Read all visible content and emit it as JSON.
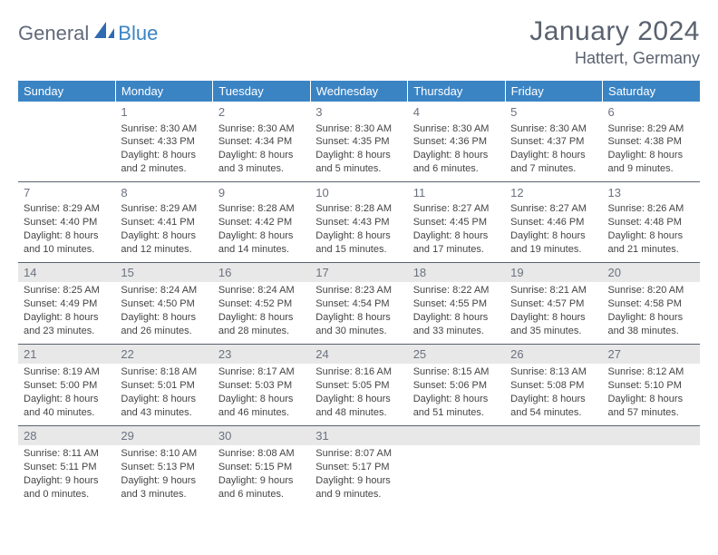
{
  "logo": {
    "general": "General",
    "blue": "Blue"
  },
  "title": "January 2024",
  "location": "Hattert, Germany",
  "header_bg": "#3b84c4",
  "day_headers": [
    "Sunday",
    "Monday",
    "Tuesday",
    "Wednesday",
    "Thursday",
    "Friday",
    "Saturday"
  ],
  "weeks": [
    [
      {
        "num": "",
        "sunrise": "",
        "sunset": "",
        "daylight": ""
      },
      {
        "num": "1",
        "sunrise": "Sunrise: 8:30 AM",
        "sunset": "Sunset: 4:33 PM",
        "daylight": "Daylight: 8 hours and 2 minutes."
      },
      {
        "num": "2",
        "sunrise": "Sunrise: 8:30 AM",
        "sunset": "Sunset: 4:34 PM",
        "daylight": "Daylight: 8 hours and 3 minutes."
      },
      {
        "num": "3",
        "sunrise": "Sunrise: 8:30 AM",
        "sunset": "Sunset: 4:35 PM",
        "daylight": "Daylight: 8 hours and 5 minutes."
      },
      {
        "num": "4",
        "sunrise": "Sunrise: 8:30 AM",
        "sunset": "Sunset: 4:36 PM",
        "daylight": "Daylight: 8 hours and 6 minutes."
      },
      {
        "num": "5",
        "sunrise": "Sunrise: 8:30 AM",
        "sunset": "Sunset: 4:37 PM",
        "daylight": "Daylight: 8 hours and 7 minutes."
      },
      {
        "num": "6",
        "sunrise": "Sunrise: 8:29 AM",
        "sunset": "Sunset: 4:38 PM",
        "daylight": "Daylight: 8 hours and 9 minutes."
      }
    ],
    [
      {
        "num": "7",
        "sunrise": "Sunrise: 8:29 AM",
        "sunset": "Sunset: 4:40 PM",
        "daylight": "Daylight: 8 hours and 10 minutes."
      },
      {
        "num": "8",
        "sunrise": "Sunrise: 8:29 AM",
        "sunset": "Sunset: 4:41 PM",
        "daylight": "Daylight: 8 hours and 12 minutes."
      },
      {
        "num": "9",
        "sunrise": "Sunrise: 8:28 AM",
        "sunset": "Sunset: 4:42 PM",
        "daylight": "Daylight: 8 hours and 14 minutes."
      },
      {
        "num": "10",
        "sunrise": "Sunrise: 8:28 AM",
        "sunset": "Sunset: 4:43 PM",
        "daylight": "Daylight: 8 hours and 15 minutes."
      },
      {
        "num": "11",
        "sunrise": "Sunrise: 8:27 AM",
        "sunset": "Sunset: 4:45 PM",
        "daylight": "Daylight: 8 hours and 17 minutes."
      },
      {
        "num": "12",
        "sunrise": "Sunrise: 8:27 AM",
        "sunset": "Sunset: 4:46 PM",
        "daylight": "Daylight: 8 hours and 19 minutes."
      },
      {
        "num": "13",
        "sunrise": "Sunrise: 8:26 AM",
        "sunset": "Sunset: 4:48 PM",
        "daylight": "Daylight: 8 hours and 21 minutes."
      }
    ],
    [
      {
        "num": "14",
        "sunrise": "Sunrise: 8:25 AM",
        "sunset": "Sunset: 4:49 PM",
        "daylight": "Daylight: 8 hours and 23 minutes."
      },
      {
        "num": "15",
        "sunrise": "Sunrise: 8:24 AM",
        "sunset": "Sunset: 4:50 PM",
        "daylight": "Daylight: 8 hours and 26 minutes."
      },
      {
        "num": "16",
        "sunrise": "Sunrise: 8:24 AM",
        "sunset": "Sunset: 4:52 PM",
        "daylight": "Daylight: 8 hours and 28 minutes."
      },
      {
        "num": "17",
        "sunrise": "Sunrise: 8:23 AM",
        "sunset": "Sunset: 4:54 PM",
        "daylight": "Daylight: 8 hours and 30 minutes."
      },
      {
        "num": "18",
        "sunrise": "Sunrise: 8:22 AM",
        "sunset": "Sunset: 4:55 PM",
        "daylight": "Daylight: 8 hours and 33 minutes."
      },
      {
        "num": "19",
        "sunrise": "Sunrise: 8:21 AM",
        "sunset": "Sunset: 4:57 PM",
        "daylight": "Daylight: 8 hours and 35 minutes."
      },
      {
        "num": "20",
        "sunrise": "Sunrise: 8:20 AM",
        "sunset": "Sunset: 4:58 PM",
        "daylight": "Daylight: 8 hours and 38 minutes."
      }
    ],
    [
      {
        "num": "21",
        "sunrise": "Sunrise: 8:19 AM",
        "sunset": "Sunset: 5:00 PM",
        "daylight": "Daylight: 8 hours and 40 minutes."
      },
      {
        "num": "22",
        "sunrise": "Sunrise: 8:18 AM",
        "sunset": "Sunset: 5:01 PM",
        "daylight": "Daylight: 8 hours and 43 minutes."
      },
      {
        "num": "23",
        "sunrise": "Sunrise: 8:17 AM",
        "sunset": "Sunset: 5:03 PM",
        "daylight": "Daylight: 8 hours and 46 minutes."
      },
      {
        "num": "24",
        "sunrise": "Sunrise: 8:16 AM",
        "sunset": "Sunset: 5:05 PM",
        "daylight": "Daylight: 8 hours and 48 minutes."
      },
      {
        "num": "25",
        "sunrise": "Sunrise: 8:15 AM",
        "sunset": "Sunset: 5:06 PM",
        "daylight": "Daylight: 8 hours and 51 minutes."
      },
      {
        "num": "26",
        "sunrise": "Sunrise: 8:13 AM",
        "sunset": "Sunset: 5:08 PM",
        "daylight": "Daylight: 8 hours and 54 minutes."
      },
      {
        "num": "27",
        "sunrise": "Sunrise: 8:12 AM",
        "sunset": "Sunset: 5:10 PM",
        "daylight": "Daylight: 8 hours and 57 minutes."
      }
    ],
    [
      {
        "num": "28",
        "sunrise": "Sunrise: 8:11 AM",
        "sunset": "Sunset: 5:11 PM",
        "daylight": "Daylight: 9 hours and 0 minutes."
      },
      {
        "num": "29",
        "sunrise": "Sunrise: 8:10 AM",
        "sunset": "Sunset: 5:13 PM",
        "daylight": "Daylight: 9 hours and 3 minutes."
      },
      {
        "num": "30",
        "sunrise": "Sunrise: 8:08 AM",
        "sunset": "Sunset: 5:15 PM",
        "daylight": "Daylight: 9 hours and 6 minutes."
      },
      {
        "num": "31",
        "sunrise": "Sunrise: 8:07 AM",
        "sunset": "Sunset: 5:17 PM",
        "daylight": "Daylight: 9 hours and 9 minutes."
      },
      {
        "num": "",
        "sunrise": "",
        "sunset": "",
        "daylight": ""
      },
      {
        "num": "",
        "sunrise": "",
        "sunset": "",
        "daylight": ""
      },
      {
        "num": "",
        "sunrise": "",
        "sunset": "",
        "daylight": ""
      }
    ]
  ],
  "shaded_rows": [
    2,
    3,
    4
  ]
}
